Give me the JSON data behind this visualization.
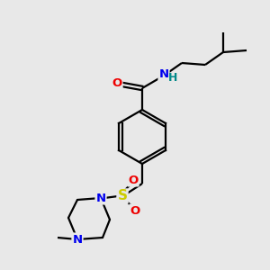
{
  "bg_color": "#e8e8e8",
  "atom_colors": {
    "C": "#000000",
    "N": "#0000ee",
    "O": "#ee0000",
    "S": "#cccc00",
    "H": "#008888"
  },
  "figsize": [
    3.0,
    3.0
  ],
  "dpi": 100,
  "lw": 1.6
}
